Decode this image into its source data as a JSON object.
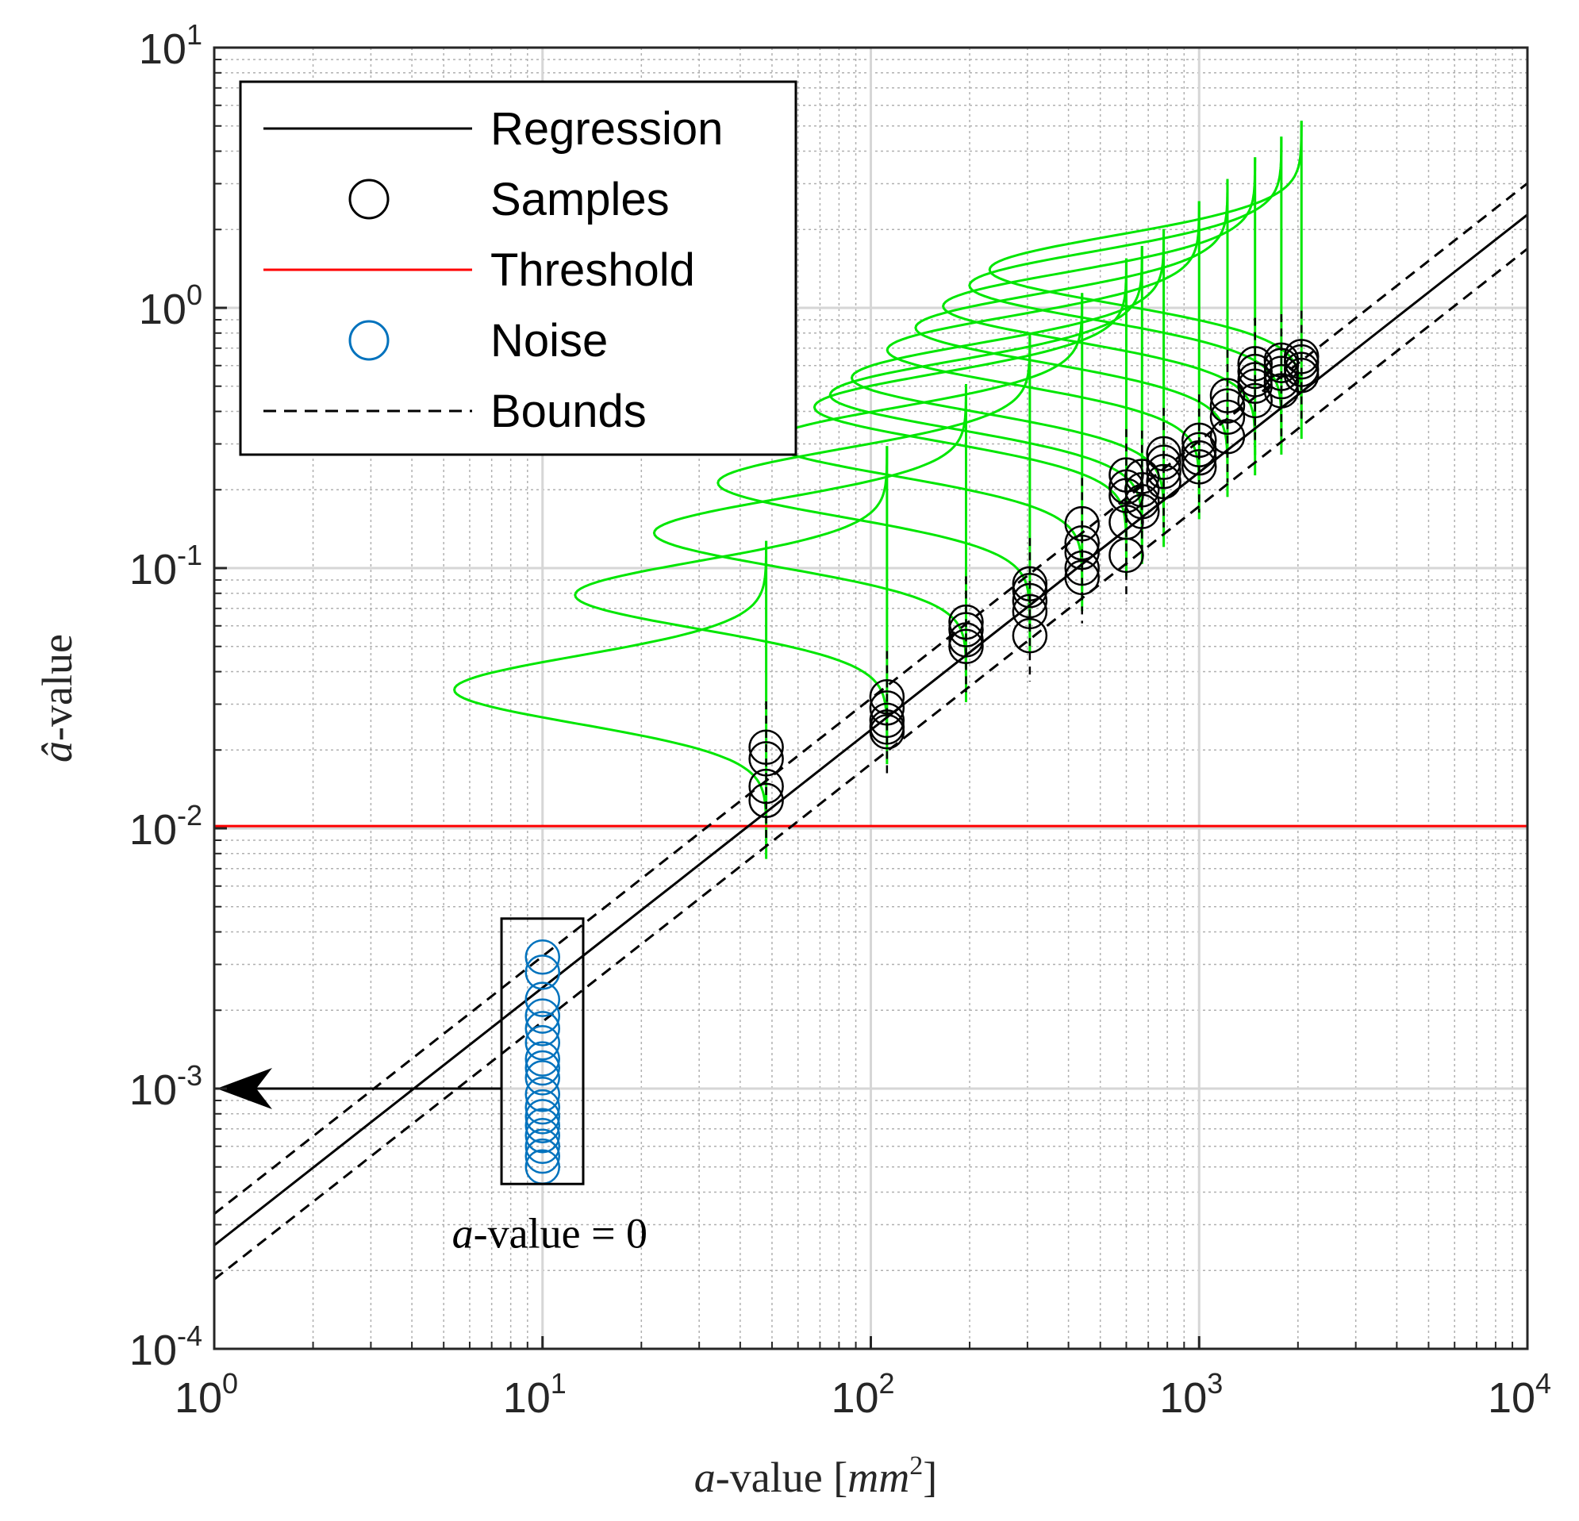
{
  "chart_data": {
    "type": "scatter",
    "x_scale": "log",
    "y_scale": "log",
    "xlim": [
      1,
      10000
    ],
    "ylim": [
      0.0001,
      10
    ],
    "grid": true,
    "minor_grid": true,
    "legend_position": "top-left",
    "xlabel": {
      "var": "a",
      "text": "-value [",
      "unit": "mm",
      "sup": "2",
      "close": "]"
    },
    "ylabel": {
      "var": "â",
      "text": "-value"
    },
    "x_ticks": [
      {
        "value": 1,
        "base": "10",
        "exp": "0"
      },
      {
        "value": 10,
        "base": "10",
        "exp": "1"
      },
      {
        "value": 100,
        "base": "10",
        "exp": "2"
      },
      {
        "value": 1000,
        "base": "10",
        "exp": "3"
      },
      {
        "value": 10000,
        "base": "10",
        "exp": "4"
      }
    ],
    "y_ticks": [
      {
        "value": 0.0001,
        "base": "10",
        "exp": "-4"
      },
      {
        "value": 0.001,
        "base": "10",
        "exp": "-3"
      },
      {
        "value": 0.01,
        "base": "10",
        "exp": "-2"
      },
      {
        "value": 0.1,
        "base": "10",
        "exp": "-1"
      },
      {
        "value": 1,
        "base": "10",
        "exp": "0"
      },
      {
        "value": 10,
        "base": "10",
        "exp": "1"
      }
    ],
    "legend": [
      {
        "key": "regression",
        "label": "Regression",
        "symbol": "line",
        "color": "#000000"
      },
      {
        "key": "samples",
        "label": "Samples",
        "symbol": "circle",
        "color": "#000000"
      },
      {
        "key": "threshold",
        "label": "Threshold",
        "symbol": "line",
        "color": "#ff0000"
      },
      {
        "key": "noise",
        "label": "Noise",
        "symbol": "circle",
        "color": "#0072bd"
      },
      {
        "key": "bounds",
        "label": "Bounds",
        "symbol": "dashed",
        "color": "#000000"
      }
    ],
    "regression": {
      "slope": 0.99,
      "intercept_at_x1": 0.00025,
      "color": "#000000"
    },
    "bounds": {
      "lower_factor": 0.74,
      "upper_factor": 1.32,
      "color": "#000000"
    },
    "threshold": {
      "value": 0.0102,
      "color": "#ff0000"
    },
    "pdf_color": "#00e600",
    "pdf_width_decades": 0.95,
    "sigma_decades": 0.13,
    "sample_groups": [
      {
        "x": 48,
        "y": [
          0.0205,
          0.0185,
          0.0145,
          0.0128
        ]
      },
      {
        "x": 112,
        "y": [
          0.032,
          0.029,
          0.026,
          0.0245,
          0.0235
        ]
      },
      {
        "x": 195,
        "y": [
          0.062,
          0.058,
          0.053,
          0.05
        ]
      },
      {
        "x": 305,
        "y": [
          0.087,
          0.082,
          0.075,
          0.068,
          0.055
        ]
      },
      {
        "x": 440,
        "y": [
          0.148,
          0.125,
          0.115,
          0.1,
          0.092
        ]
      },
      {
        "x": 600,
        "y": [
          0.228,
          0.205,
          0.19,
          0.15,
          0.112
        ]
      },
      {
        "x": 670,
        "y": [
          0.225,
          0.2,
          0.18,
          0.165
        ]
      },
      {
        "x": 780,
        "y": [
          0.275,
          0.255,
          0.235,
          0.215
        ]
      },
      {
        "x": 1000,
        "y": [
          0.31,
          0.285,
          0.265,
          0.245
        ]
      },
      {
        "x": 1220,
        "y": [
          0.46,
          0.42,
          0.38,
          0.32
        ]
      },
      {
        "x": 1480,
        "y": [
          0.61,
          0.57,
          0.53,
          0.5,
          0.44
        ]
      },
      {
        "x": 1780,
        "y": [
          0.63,
          0.6,
          0.56,
          0.52,
          0.48
        ]
      },
      {
        "x": 2050,
        "y": [
          0.65,
          0.62,
          0.58,
          0.55
        ]
      }
    ],
    "noise": {
      "x": 10,
      "y": [
        0.0032,
        0.0028,
        0.0022,
        0.0019,
        0.0017,
        0.0015,
        0.0013,
        0.0012,
        0.0011,
        0.00095,
        0.00085,
        0.00078,
        0.00072,
        0.00066,
        0.0006,
        0.00055,
        0.0005
      ],
      "color": "#0072bd",
      "box_x": [
        7.5,
        13.3
      ],
      "box_y": [
        0.00043,
        0.0045
      ],
      "arrow_from": [
        7.5,
        0.001
      ],
      "arrow_to": [
        1,
        0.001
      ]
    },
    "annotation": {
      "var": "a",
      "text": "-value = 0",
      "x": 5.3,
      "y": 0.000245
    }
  }
}
